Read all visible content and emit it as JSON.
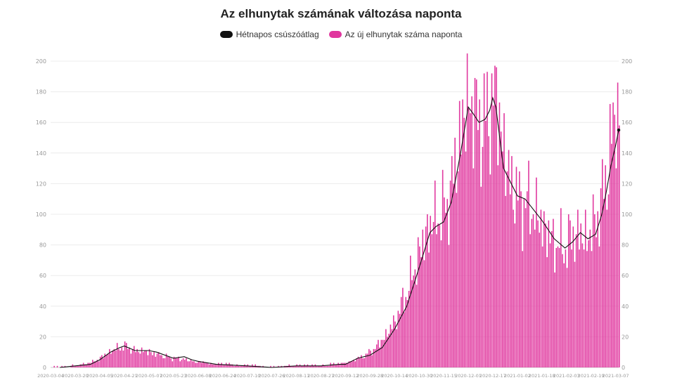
{
  "chart_data": {
    "type": "bar",
    "title": "Az elhunytak számának változása naponta",
    "legend_position": "top-center",
    "grid": true,
    "ylim": [
      0,
      200
    ],
    "y_ticks": [
      0,
      20,
      40,
      60,
      80,
      100,
      120,
      140,
      160,
      180,
      200
    ],
    "x_start": "2020-03-04",
    "x_end": "2021-03-09",
    "x_ticks": [
      "2020-03-04",
      "2020-03-20",
      "2020-04-05",
      "2020-04-21",
      "2020-05-07",
      "2020-05-23",
      "2020-06-08",
      "2020-06-24",
      "2020-07-10",
      "2020-07-26",
      "2020-08-11",
      "2020-08-27",
      "2020-09-12",
      "2020-09-28",
      "2020-10-14",
      "2020-10-30",
      "2020-11-15",
      "2020-12-01",
      "2020-12-17",
      "2021-01-02",
      "2021-01-18",
      "2021-02-03",
      "2021-02-19",
      "2021-03-07"
    ],
    "series": [
      {
        "name": "Az új elhunytak száma naponta",
        "kind": "bar",
        "color": "#e0369e",
        "anchors": [
          [
            "2020-03-04",
            0
          ],
          [
            "2020-03-14",
            0
          ],
          [
            "2020-03-20",
            1
          ],
          [
            "2020-03-28",
            2
          ],
          [
            "2020-04-05",
            6
          ],
          [
            "2020-04-12",
            11
          ],
          [
            "2020-04-18",
            13
          ],
          [
            "2020-04-21",
            14
          ],
          [
            "2020-04-28",
            11
          ],
          [
            "2020-05-07",
            10
          ],
          [
            "2020-05-15",
            8
          ],
          [
            "2020-05-23",
            6
          ],
          [
            "2020-06-01",
            5
          ],
          [
            "2020-06-08",
            3
          ],
          [
            "2020-06-20",
            2
          ],
          [
            "2020-07-10",
            1
          ],
          [
            "2020-07-26",
            0
          ],
          [
            "2020-08-11",
            1
          ],
          [
            "2020-08-27",
            1
          ],
          [
            "2020-09-08",
            2
          ],
          [
            "2020-09-12",
            3
          ],
          [
            "2020-09-20",
            6
          ],
          [
            "2020-09-28",
            10
          ],
          [
            "2020-10-06",
            18
          ],
          [
            "2020-10-14",
            30
          ],
          [
            "2020-10-22",
            50
          ],
          [
            "2020-10-30",
            75
          ],
          [
            "2020-11-05",
            92
          ],
          [
            "2020-11-10",
            98
          ],
          [
            "2020-11-15",
            102
          ],
          [
            "2020-11-20",
            118
          ],
          [
            "2020-11-25",
            150
          ],
          [
            "2020-12-01",
            176
          ],
          [
            "2020-12-05",
            165
          ],
          [
            "2020-12-10",
            158
          ],
          [
            "2020-12-14",
            165
          ],
          [
            "2020-12-17",
            178
          ],
          [
            "2020-12-20",
            170
          ],
          [
            "2020-12-26",
            128
          ],
          [
            "2021-01-02",
            110
          ],
          [
            "2021-01-10",
            106
          ],
          [
            "2021-01-18",
            93
          ],
          [
            "2021-01-25",
            82
          ],
          [
            "2021-02-01",
            78
          ],
          [
            "2021-02-08",
            88
          ],
          [
            "2021-02-14",
            85
          ],
          [
            "2021-02-19",
            88
          ],
          [
            "2021-02-26",
            110
          ],
          [
            "2021-03-02",
            135
          ],
          [
            "2021-03-05",
            155
          ],
          [
            "2021-03-07",
            172
          ],
          [
            "2021-03-09",
            160
          ]
        ]
      },
      {
        "name": "Hétnapos csúszóátlag",
        "kind": "line",
        "color": "#111111",
        "anchors": [
          [
            "2020-03-10",
            0
          ],
          [
            "2020-03-20",
            1
          ],
          [
            "2020-03-30",
            2
          ],
          [
            "2020-04-05",
            5
          ],
          [
            "2020-04-12",
            10
          ],
          [
            "2020-04-18",
            13
          ],
          [
            "2020-04-21",
            14
          ],
          [
            "2020-04-28",
            11
          ],
          [
            "2020-05-07",
            11
          ],
          [
            "2020-05-12",
            10
          ],
          [
            "2020-05-23",
            6
          ],
          [
            "2020-05-30",
            7
          ],
          [
            "2020-06-04",
            5
          ],
          [
            "2020-06-08",
            4
          ],
          [
            "2020-06-20",
            2
          ],
          [
            "2020-07-10",
            1
          ],
          [
            "2020-07-26",
            0
          ],
          [
            "2020-08-11",
            1
          ],
          [
            "2020-08-27",
            1
          ],
          [
            "2020-09-08",
            2
          ],
          [
            "2020-09-12",
            2
          ],
          [
            "2020-09-20",
            6
          ],
          [
            "2020-09-28",
            8
          ],
          [
            "2020-10-06",
            13
          ],
          [
            "2020-10-14",
            25
          ],
          [
            "2020-10-22",
            40
          ],
          [
            "2020-10-30",
            65
          ],
          [
            "2020-11-06",
            88
          ],
          [
            "2020-11-10",
            92
          ],
          [
            "2020-11-15",
            95
          ],
          [
            "2020-11-20",
            108
          ],
          [
            "2020-11-26",
            140
          ],
          [
            "2020-12-01",
            170
          ],
          [
            "2020-12-04",
            166
          ],
          [
            "2020-12-08",
            160
          ],
          [
            "2020-12-12",
            162
          ],
          [
            "2020-12-15",
            168
          ],
          [
            "2020-12-17",
            176
          ],
          [
            "2020-12-19",
            170
          ],
          [
            "2020-12-24",
            130
          ],
          [
            "2021-01-02",
            112
          ],
          [
            "2021-01-07",
            110
          ],
          [
            "2021-01-18",
            96
          ],
          [
            "2021-01-26",
            84
          ],
          [
            "2021-02-02",
            78
          ],
          [
            "2021-02-07",
            82
          ],
          [
            "2021-02-12",
            88
          ],
          [
            "2021-02-17",
            84
          ],
          [
            "2021-02-22",
            87
          ],
          [
            "2021-02-26",
            100
          ],
          [
            "2021-03-01",
            115
          ],
          [
            "2021-03-04",
            132
          ],
          [
            "2021-03-07",
            145
          ],
          [
            "2021-03-09",
            155
          ]
        ]
      }
    ]
  }
}
